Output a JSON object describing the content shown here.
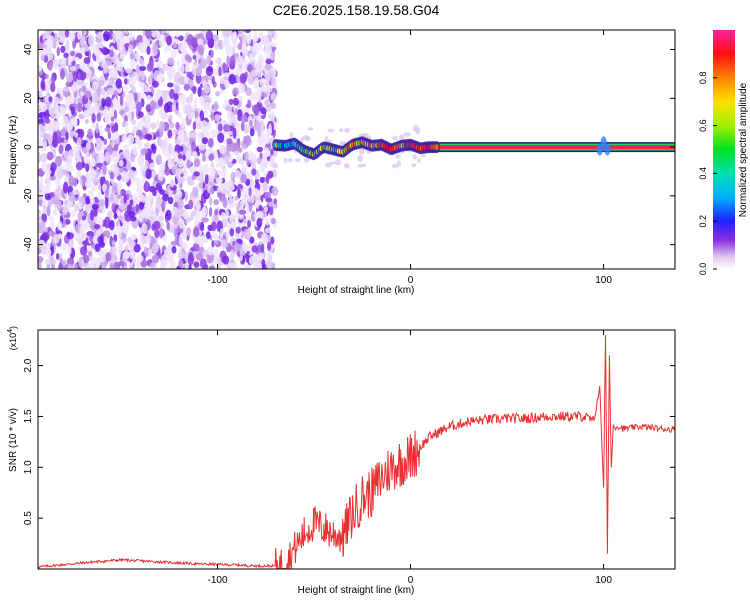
{
  "title": "C2E6.2025.158.19.58.G04",
  "chart_data": [
    {
      "type": "heatmap",
      "xlabel": "Height of straight line (km)",
      "ylabel": "Frequency (Hz)",
      "xlim": [
        -193,
        137
      ],
      "ylim": [
        -50,
        48
      ],
      "xticks": [
        -100,
        0,
        100
      ],
      "yticks": [
        -40,
        -20,
        0,
        20,
        40
      ],
      "colorbar": {
        "label": "Normalized spectral amplitude",
        "range": [
          0,
          1
        ],
        "ticks": [
          "0.0",
          "0.2",
          "0.4",
          "0.6",
          "0.8"
        ]
      },
      "regions": [
        {
          "x_range": [
            -193,
            -70
          ],
          "pattern": "scattered noise, amplitude 0.0-0.15"
        },
        {
          "x_range": [
            -70,
            10
          ],
          "pattern": "wavy line near 0 Hz, amplitude 0.3-1.0"
        },
        {
          "x_range": [
            10,
            137
          ],
          "pattern": "steady line at 0 Hz, amplitude ~1.0"
        }
      ],
      "trace": {
        "x": [
          -72,
          -65,
          -60,
          -55,
          -50,
          -45,
          -40,
          -35,
          -30,
          -25,
          -20,
          -15,
          -10,
          -5,
          0,
          5,
          10,
          137
        ],
        "y": [
          1,
          0.5,
          1.5,
          -1.5,
          -3,
          0,
          -1,
          -2,
          1,
          2,
          0.5,
          1,
          -1,
          0.5,
          1,
          -0.5,
          0,
          0
        ]
      }
    },
    {
      "type": "line",
      "xlabel": "Height of straight line (km)",
      "ylabel": "SNR (10 * v/v)",
      "yscale_label": "(x10",
      "yscale_exp": "4",
      "xlim": [
        -193,
        137
      ],
      "ylim": [
        0,
        2.35
      ],
      "xticks": [
        -100,
        0,
        100
      ],
      "yticks": [
        "0.5",
        "1.0",
        "1.5",
        "2.0"
      ],
      "color": "#e83030",
      "series": [
        {
          "x": [
            -193,
            -170,
            -150,
            -130,
            -110,
            -90,
            -80,
            -70,
            -65,
            -60,
            -55,
            -50,
            -45,
            -40,
            -35,
            -30,
            -25,
            -20,
            -15,
            -10,
            -5,
            0,
            5,
            10,
            20,
            30,
            40,
            50,
            60,
            70,
            80,
            90,
            95,
            98,
            100,
            101,
            102,
            103,
            104,
            105,
            108,
            110,
            120,
            130,
            137
          ],
          "values": [
            0.02,
            0.06,
            0.09,
            0.07,
            0.05,
            0.04,
            0.03,
            0.03,
            0.05,
            0.2,
            0.35,
            0.45,
            0.4,
            0.35,
            0.32,
            0.55,
            0.7,
            0.75,
            0.9,
            1.0,
            1.05,
            1.1,
            1.2,
            1.3,
            1.4,
            1.45,
            1.47,
            1.48,
            1.48,
            1.5,
            1.5,
            1.5,
            1.45,
            1.8,
            0.8,
            2.3,
            0.15,
            2.1,
            1.0,
            1.4,
            1.4,
            1.38,
            1.4,
            1.38,
            1.37
          ]
        }
      ]
    }
  ]
}
